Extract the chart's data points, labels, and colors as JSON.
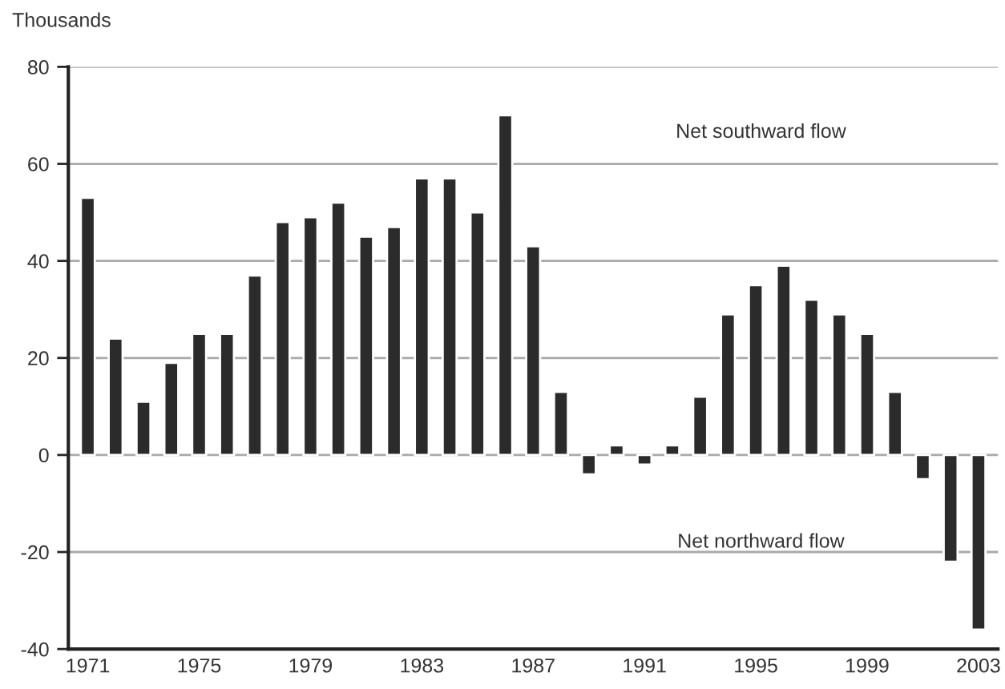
{
  "chart_data": {
    "type": "bar",
    "ylabel": "Thousands",
    "x": [
      1971,
      1972,
      1973,
      1974,
      1975,
      1976,
      1977,
      1978,
      1979,
      1980,
      1981,
      1982,
      1983,
      1984,
      1985,
      1986,
      1987,
      1988,
      1989,
      1990,
      1991,
      1992,
      1993,
      1994,
      1995,
      1996,
      1997,
      1998,
      1999,
      2000,
      2001,
      2002,
      2003
    ],
    "values": [
      53,
      24,
      11,
      19,
      25,
      25,
      37,
      48,
      49,
      52,
      45,
      47,
      57,
      57,
      50,
      70,
      43,
      13,
      -4,
      2,
      -2,
      2,
      12,
      29,
      35,
      39,
      32,
      29,
      25,
      13,
      -5,
      -22,
      -36
    ],
    "color": "#2b2b2b",
    "xlim": [
      1970.3,
      2003.7
    ],
    "xticks": [
      1971,
      1975,
      1979,
      1983,
      1987,
      1991,
      1995,
      1999,
      2003
    ],
    "ylim": [
      -40,
      80
    ],
    "yticks": [
      -40,
      -20,
      0,
      20,
      40,
      60,
      80
    ],
    "grid": "y",
    "legend": false,
    "annotations": [
      "Net southward flow",
      "Net northward flow"
    ]
  }
}
